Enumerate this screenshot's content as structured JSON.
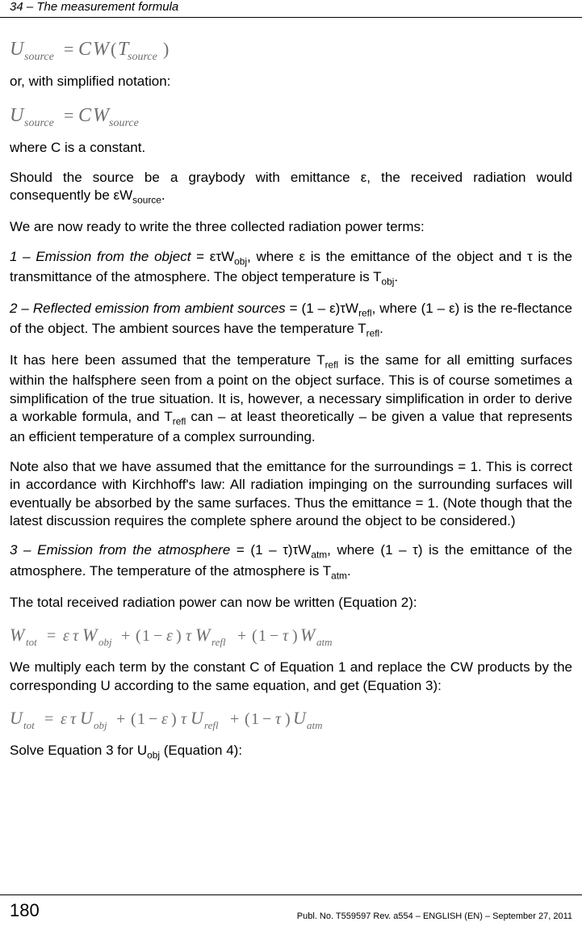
{
  "header": {
    "title": "34 – The measurement formula"
  },
  "body": {
    "p1": "or, with simplified notation:",
    "p2": "where C is a constant.",
    "p3_a": "Should the source be a graybody with emittance ε, the received radiation would consequently be εW",
    "p3_sub": "source",
    "p3_b": ".",
    "p4": "We are now ready to write the three collected radiation power terms:",
    "p5_a": "1 – Emission from the object",
    "p5_b": " = ετW",
    "p5_sub1": "obj",
    "p5_c": ", where ε is the emittance of the object and τ is the transmittance of the atmosphere. The object temperature is T",
    "p5_sub2": "obj",
    "p5_d": ".",
    "p6_a": "2 – Reflected emission from ambient sources",
    "p6_b": " = (1 – ε)τW",
    "p6_sub1": "refl",
    "p6_c": ", where (1 – ε) is the re-flectance of the object. The ambient sources have the temperature T",
    "p6_sub2": "refl",
    "p6_d": ".",
    "p7_a": "It has here been assumed that the temperature T",
    "p7_sub1": "refl",
    "p7_b": " is the same for all emitting surfaces within the halfsphere seen from a point on the object surface. This is of course sometimes a simplification of the true situation. It is, however, a necessary simplification in order to derive a workable formula, and T",
    "p7_sub2": "refl",
    "p7_c": " can – at least theoretically – be given a value that represents an efficient temperature of a complex surrounding.",
    "p8": "Note also that we have assumed that the emittance for the surroundings = 1. This is correct in accordance with Kirchhoff's law: All radiation impinging on the surrounding surfaces will eventually be absorbed by the same surfaces. Thus the emittance = 1. (Note though that the latest discussion requires the complete sphere around the object to be considered.)",
    "p9_a": "3 – Emission from the atmosphere",
    "p9_b": " = (1 – τ)τW",
    "p9_sub1": "atm",
    "p9_c": ", where (1 – τ) is the emittance of the atmosphere. The temperature of the atmosphere is T",
    "p9_sub2": "atm",
    "p9_d": ".",
    "p10": "The total received radiation power can now be written (Equation 2):",
    "p11": "We multiply each term by the constant C of Equation 1 and replace the CW products by the corresponding U according to the same equation, and get (Equation 3):",
    "p12_a": "Solve Equation 3 for U",
    "p12_sub": "obj",
    "p12_b": " (Equation 4):"
  },
  "equations": {
    "eq1": {
      "U": "U",
      "sub1": "source",
      "eq": "=",
      "C": "C",
      "W": "W",
      "T": "T",
      "sub2": "source",
      "lp": "(",
      "rp": ")"
    },
    "eq2": {
      "U": "U",
      "sub1": "source",
      "eq": "=",
      "C": "C",
      "W": "W",
      "sub2": "source"
    },
    "eq3": {
      "W": "W",
      "tot": "tot",
      "eq": "=",
      "e": "ε",
      "t": "τ",
      "obj": "obj",
      "p": "+",
      "lp": "(",
      "one": "1",
      "m": "−",
      "rp": ")",
      "refl": "refl",
      "atm": "atm"
    },
    "eq4": {
      "U": "U",
      "tot": "tot",
      "eq": "=",
      "e": "ε",
      "t": "τ",
      "obj": "obj",
      "p": "+",
      "lp": "(",
      "one": "1",
      "m": "−",
      "rp": ")",
      "refl": "refl",
      "atm": "atm"
    }
  },
  "footer": {
    "page": "180",
    "pub": "Publ. No. T559597 Rev. a554 – ENGLISH (EN) – September 27, 2011"
  },
  "style": {
    "eq_color": "#6f6f6f",
    "text_color": "#000000",
    "border_color": "#000000",
    "bg_color": "#ffffff"
  }
}
